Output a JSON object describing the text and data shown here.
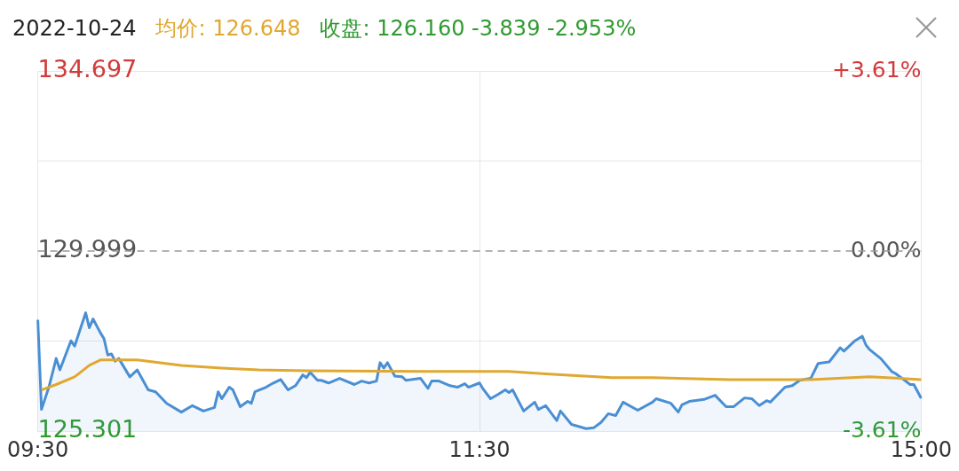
{
  "chart_data": {
    "type": "line",
    "title": "2022-10-24",
    "annotations": [
      "均价: 126.648",
      "收盘: 126.160 -3.839 -2.953%"
    ],
    "categories": [
      "09:30",
      null,
      null,
      null,
      null,
      null,
      null,
      null,
      null,
      null,
      null,
      null,
      null,
      null,
      null,
      null,
      null,
      null,
      null,
      null,
      null,
      null,
      null,
      null,
      null,
      null,
      null,
      null,
      null,
      null,
      null,
      null,
      null,
      null,
      null,
      null,
      null,
      null,
      null,
      null,
      null,
      null,
      null,
      null,
      null,
      null,
      null,
      null,
      null,
      null,
      null,
      null,
      null,
      null,
      null,
      null,
      null,
      null,
      null,
      null,
      null,
      null,
      null,
      null,
      null,
      null,
      null,
      null,
      null,
      null,
      null,
      null,
      null,
      null,
      null,
      null,
      null,
      null,
      null,
      null,
      null,
      null,
      null,
      null,
      null,
      null,
      null,
      null,
      null,
      null,
      null,
      null,
      null,
      null,
      null,
      null,
      null,
      null,
      null,
      null,
      null,
      null,
      null,
      null,
      null,
      null,
      null,
      null,
      null,
      null,
      null,
      null,
      null,
      null,
      null,
      null,
      null,
      null,
      null,
      null,
      "11:30",
      null,
      null,
      null,
      null,
      null,
      null,
      null,
      null,
      null,
      null,
      null,
      null,
      null,
      null,
      null,
      null,
      null,
      null,
      null,
      null,
      null,
      null,
      null,
      null,
      null,
      null,
      null,
      null,
      null,
      null,
      null,
      null,
      null,
      null,
      null,
      null,
      null,
      null,
      null,
      null,
      null,
      null,
      null,
      null,
      null,
      null,
      null,
      null,
      null,
      null,
      null,
      null,
      null,
      null,
      null,
      null,
      null,
      null,
      null,
      null,
      null,
      null,
      null,
      null,
      null,
      null,
      null,
      null,
      null,
      null,
      null,
      null,
      null,
      null,
      null,
      null,
      null,
      null,
      null,
      null,
      null,
      null,
      null,
      null,
      null,
      null,
      null,
      null,
      null,
      null,
      null,
      null,
      null,
      null,
      null,
      null,
      null,
      null,
      null,
      null,
      null,
      null,
      null,
      null,
      null,
      null,
      null,
      null,
      null,
      null,
      null,
      null,
      null,
      null,
      null,
      null,
      null,
      null,
      null,
      "15:00"
    ],
    "ylim": [
      125.301,
      134.697
    ],
    "yticks": [
      {
        "value": 125.301,
        "label": "125.301"
      },
      {
        "value": 127.65,
        "label": null
      },
      {
        "value": 129.999,
        "label": "129.999"
      },
      {
        "value": 132.348,
        "label": null
      },
      {
        "value": 134.697,
        "label": "134.697"
      }
    ],
    "y2lim": [
      -3.61,
      3.61
    ],
    "y2ticks": [
      {
        "value": -3.61,
        "label": "-3.61%"
      },
      {
        "value": 0,
        "label": "0.00%"
      },
      {
        "value": 3.61,
        "label": "+3.61%"
      }
    ],
    "grid": true,
    "legend": false,
    "marker": "none",
    "ref_lines": [
      {
        "axis": "y",
        "value": 129.999,
        "color": "#999999",
        "line_style": "dashed"
      }
    ],
    "series": [
      {
        "type": "area",
        "color": "#4a8fd4",
        "values": [
          128.21,
          125.87,
          null,
          126.45,
          null,
          127.2,
          126.9,
          null,
          null,
          127.66,
          127.52,
          null,
          null,
          128.39,
          128.0,
          128.23,
          null,
          127.87,
          127.71,
          127.29,
          127.32,
          127.13,
          127.2,
          null,
          null,
          126.72,
          null,
          126.9,
          null,
          null,
          126.38,
          null,
          126.33,
          null,
          null,
          126.03,
          null,
          null,
          null,
          125.8,
          null,
          null,
          125.97,
          null,
          null,
          125.83,
          null,
          null,
          125.92,
          126.33,
          126.15,
          null,
          126.45,
          126.38,
          null,
          125.94,
          null,
          126.08,
          126.03,
          126.33,
          null,
          null,
          126.45,
          null,
          126.56,
          null,
          126.65,
          null,
          126.38,
          null,
          126.49,
          null,
          126.77,
          126.7,
          126.84,
          null,
          126.63,
          126.63,
          null,
          126.56,
          null,
          null,
          126.68,
          null,
          null,
          null,
          126.52,
          null,
          126.61,
          null,
          126.56,
          null,
          126.61,
          127.09,
          126.95,
          127.09,
          null,
          126.74,
          null,
          126.72,
          126.63,
          null,
          null,
          null,
          126.68,
          null,
          126.42,
          126.61,
          null,
          126.61,
          null,
          null,
          126.49,
          null,
          126.45,
          null,
          126.54,
          126.45,
          null,
          null,
          126.56,
          126.4,
          null,
          126.15,
          null,
          126.26,
          null,
          126.38,
          126.31,
          126.38,
          null,
          null,
          125.83,
          null,
          null,
          126.06,
          125.87,
          null,
          125.97,
          null,
          null,
          125.58,
          125.83,
          null,
          null,
          125.48,
          null,
          null,
          null,
          125.37,
          null,
          125.39,
          null,
          125.53,
          null,
          125.76,
          null,
          125.71,
          null,
          126.06,
          null,
          null,
          null,
          125.85,
          null,
          null,
          null,
          126.06,
          126.15,
          null,
          null,
          null,
          126.03,
          null,
          125.8,
          125.99,
          null,
          126.08,
          null,
          null,
          null,
          126.13,
          null,
          null,
          126.24,
          null,
          null,
          125.94,
          null,
          125.94,
          null,
          null,
          126.17,
          null,
          126.15,
          null,
          125.97,
          null,
          126.1,
          126.06,
          null,
          null,
          null,
          126.45,
          null,
          126.49,
          null,
          126.63,
          null,
          null,
          126.68,
          null,
          127.07,
          null,
          null,
          127.11,
          null,
          null,
          127.48,
          127.39,
          null,
          null,
          127.66,
          null,
          127.78,
          127.55,
          127.43,
          null,
          null,
          127.2,
          null,
          null,
          126.86,
          126.81,
          null,
          null,
          null,
          126.52,
          126.52,
          null,
          126.16
        ]
      },
      {
        "type": "line",
        "color": "#e0a830",
        "values": [
          null,
          126.38,
          null,
          null,
          null,
          126.52,
          null,
          null,
          null,
          null,
          126.72,
          null,
          null,
          null,
          127.02,
          null,
          null,
          127.16,
          null,
          null,
          null,
          null,
          127.16,
          null,
          null,
          null,
          null,
          127.16,
          null,
          null,
          null,
          null,
          null,
          null,
          null,
          null,
          null,
          null,
          null,
          127.02,
          null,
          null,
          null,
          null,
          null,
          null,
          null,
          null,
          null,
          null,
          126.95,
          null,
          null,
          null,
          null,
          null,
          null,
          null,
          null,
          null,
          126.9,
          null,
          null,
          null,
          null,
          null,
          null,
          null,
          null,
          null,
          null,
          null,
          null,
          126.88,
          null,
          null,
          null,
          null,
          null,
          null,
          null,
          null,
          null,
          null,
          null,
          null,
          null,
          null,
          null,
          null,
          null,
          null,
          null,
          null,
          null,
          null,
          null,
          null,
          null,
          null,
          null,
          null,
          null,
          null,
          null,
          126.86,
          null,
          null,
          null,
          null,
          null,
          null,
          null,
          null,
          null,
          null,
          null,
          null,
          null,
          null,
          null,
          null,
          null,
          null,
          null,
          null,
          null,
          null,
          126.86,
          null,
          null,
          null,
          null,
          null,
          null,
          null,
          null,
          null,
          null,
          126.79,
          null,
          null,
          null,
          null,
          null,
          null,
          null,
          null,
          null,
          null,
          null,
          null,
          null,
          null,
          null,
          null,
          126.7,
          null,
          null,
          null,
          null,
          null,
          null,
          null,
          null,
          null,
          null,
          126.7,
          null,
          null,
          null,
          null,
          null,
          null,
          null,
          null,
          null,
          null,
          null,
          null,
          null,
          null,
          null,
          null,
          null,
          null,
          null,
          null,
          126.65,
          null,
          null,
          null,
          null,
          null,
          null,
          null,
          null,
          null,
          null,
          null,
          null,
          null,
          null,
          null,
          null,
          null,
          null,
          null,
          null,
          null,
          126.65,
          null,
          null,
          null,
          null,
          null,
          null,
          null,
          null,
          null,
          null,
          null,
          null,
          null,
          null,
          null,
          126.72,
          null,
          null,
          null,
          null,
          null,
          null,
          null,
          null,
          null,
          null,
          null,
          null,
          null,
          126.65
        ]
      }
    ]
  }
}
